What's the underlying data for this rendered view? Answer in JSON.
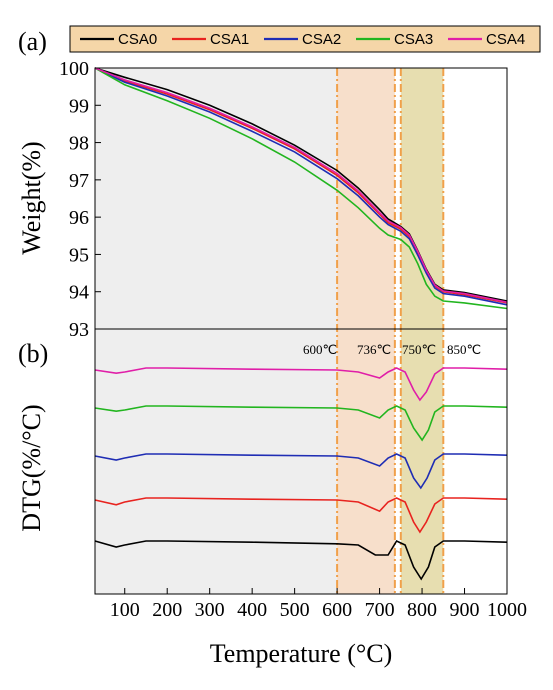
{
  "chart_data": [
    {
      "type": "line",
      "panel_label": "(a)",
      "ylabel": "Weight(%)",
      "ylim": [
        93,
        100
      ],
      "yticks": [
        "93",
        "94",
        "95",
        "96",
        "97",
        "98",
        "99",
        "100"
      ],
      "xlim": [
        30,
        1000
      ],
      "legend": {
        "placement": "top"
      },
      "series": [
        {
          "name": "CSA0",
          "color": "#000000",
          "points": [
            [
              30,
              100
            ],
            [
              100,
              99.75
            ],
            [
              200,
              99.42
            ],
            [
              300,
              99.0
            ],
            [
              400,
              98.5
            ],
            [
              500,
              97.93
            ],
            [
              600,
              97.25
            ],
            [
              650,
              96.78
            ],
            [
              700,
              96.2
            ],
            [
              720,
              95.95
            ],
            [
              750,
              95.75
            ],
            [
              770,
              95.55
            ],
            [
              790,
              95.1
            ],
            [
              810,
              94.6
            ],
            [
              830,
              94.2
            ],
            [
              850,
              94.05
            ],
            [
              900,
              93.98
            ],
            [
              1000,
              93.75
            ]
          ]
        },
        {
          "name": "CSA1",
          "color": "#e8231f",
          "points": [
            [
              30,
              100
            ],
            [
              100,
              99.65
            ],
            [
              200,
              99.3
            ],
            [
              300,
              98.88
            ],
            [
              400,
              98.38
            ],
            [
              500,
              97.83
            ],
            [
              600,
              97.12
            ],
            [
              650,
              96.65
            ],
            [
              700,
              96.08
            ],
            [
              720,
              95.85
            ],
            [
              750,
              95.68
            ],
            [
              770,
              95.48
            ],
            [
              790,
              95.05
            ],
            [
              810,
              94.55
            ],
            [
              830,
              94.15
            ],
            [
              850,
              94.0
            ],
            [
              900,
              93.92
            ],
            [
              1000,
              93.7
            ]
          ]
        },
        {
          "name": "CSA2",
          "color": "#1f2db4",
          "points": [
            [
              30,
              100
            ],
            [
              100,
              99.62
            ],
            [
              200,
              99.25
            ],
            [
              300,
              98.82
            ],
            [
              400,
              98.3
            ],
            [
              500,
              97.75
            ],
            [
              600,
              97.03
            ],
            [
              650,
              96.57
            ],
            [
              700,
              96.0
            ],
            [
              720,
              95.8
            ],
            [
              750,
              95.62
            ],
            [
              770,
              95.42
            ],
            [
              790,
              94.98
            ],
            [
              810,
              94.5
            ],
            [
              830,
              94.1
            ],
            [
              850,
              93.95
            ],
            [
              900,
              93.88
            ],
            [
              1000,
              93.65
            ]
          ]
        },
        {
          "name": "CSA3",
          "color": "#22b51f",
          "points": [
            [
              30,
              100
            ],
            [
              100,
              99.55
            ],
            [
              200,
              99.12
            ],
            [
              300,
              98.65
            ],
            [
              400,
              98.1
            ],
            [
              500,
              97.48
            ],
            [
              600,
              96.72
            ],
            [
              650,
              96.25
            ],
            [
              700,
              95.7
            ],
            [
              720,
              95.52
            ],
            [
              750,
              95.4
            ],
            [
              770,
              95.2
            ],
            [
              790,
              94.75
            ],
            [
              810,
              94.2
            ],
            [
              830,
              93.88
            ],
            [
              850,
              93.75
            ],
            [
              900,
              93.7
            ],
            [
              1000,
              93.55
            ]
          ]
        },
        {
          "name": "CSA4",
          "color": "#e01ea8",
          "points": [
            [
              30,
              100
            ],
            [
              100,
              99.68
            ],
            [
              200,
              99.34
            ],
            [
              300,
              98.92
            ],
            [
              400,
              98.42
            ],
            [
              500,
              97.87
            ],
            [
              600,
              97.17
            ],
            [
              650,
              96.7
            ],
            [
              700,
              96.12
            ],
            [
              720,
              95.9
            ],
            [
              750,
              95.72
            ],
            [
              770,
              95.52
            ],
            [
              790,
              95.08
            ],
            [
              810,
              94.58
            ],
            [
              830,
              94.18
            ],
            [
              850,
              94.02
            ],
            [
              900,
              93.95
            ],
            [
              1000,
              93.72
            ]
          ]
        }
      ]
    },
    {
      "type": "line",
      "panel_label": "(b)",
      "ylabel": "DTG(%/°C)",
      "xlabel": "Temperature (°C)",
      "xlim": [
        30,
        1000
      ],
      "xticks": [
        "100",
        "200",
        "300",
        "400",
        "500",
        "600",
        "700",
        "800",
        "900",
        "1000"
      ],
      "series": [
        {
          "name": "CSA4",
          "color": "#e01ea8",
          "offset": 4,
          "points": [
            [
              30,
              0
            ],
            [
              80,
              -0.08
            ],
            [
              100,
              -0.05
            ],
            [
              150,
              0.05
            ],
            [
              200,
              0.05
            ],
            [
              400,
              0.02
            ],
            [
              600,
              0
            ],
            [
              650,
              -0.05
            ],
            [
              700,
              -0.2
            ],
            [
              720,
              -0.05
            ],
            [
              740,
              0.05
            ],
            [
              760,
              -0.05
            ],
            [
              780,
              -0.5
            ],
            [
              795,
              -0.75
            ],
            [
              810,
              -0.55
            ],
            [
              830,
              -0.1
            ],
            [
              850,
              0.05
            ],
            [
              900,
              0.05
            ],
            [
              1000,
              0.02
            ]
          ]
        },
        {
          "name": "CSA3",
          "color": "#22b51f",
          "offset": 3,
          "points": [
            [
              30,
              0
            ],
            [
              80,
              -0.08
            ],
            [
              100,
              -0.05
            ],
            [
              150,
              0.05
            ],
            [
              200,
              0.05
            ],
            [
              400,
              0.02
            ],
            [
              600,
              0
            ],
            [
              650,
              -0.05
            ],
            [
              700,
              -0.25
            ],
            [
              720,
              -0.05
            ],
            [
              740,
              0.05
            ],
            [
              760,
              -0.05
            ],
            [
              780,
              -0.5
            ],
            [
              800,
              -0.8
            ],
            [
              815,
              -0.55
            ],
            [
              830,
              -0.1
            ],
            [
              850,
              0.05
            ],
            [
              900,
              0.05
            ],
            [
              1000,
              0.02
            ]
          ]
        },
        {
          "name": "CSA2",
          "color": "#1f2db4",
          "offset": 2,
          "points": [
            [
              30,
              0
            ],
            [
              80,
              -0.1
            ],
            [
              100,
              -0.05
            ],
            [
              150,
              0.05
            ],
            [
              200,
              0.05
            ],
            [
              400,
              0.02
            ],
            [
              600,
              0
            ],
            [
              650,
              -0.05
            ],
            [
              700,
              -0.25
            ],
            [
              720,
              -0.05
            ],
            [
              740,
              0.05
            ],
            [
              760,
              -0.05
            ],
            [
              780,
              -0.55
            ],
            [
              797,
              -0.8
            ],
            [
              812,
              -0.55
            ],
            [
              830,
              -0.1
            ],
            [
              850,
              0.05
            ],
            [
              900,
              0.05
            ],
            [
              1000,
              0.02
            ]
          ]
        },
        {
          "name": "CSA1",
          "color": "#e8231f",
          "offset": 1,
          "points": [
            [
              30,
              0
            ],
            [
              80,
              -0.12
            ],
            [
              100,
              -0.05
            ],
            [
              150,
              0.05
            ],
            [
              200,
              0.05
            ],
            [
              400,
              0.02
            ],
            [
              600,
              0
            ],
            [
              650,
              -0.05
            ],
            [
              700,
              -0.28
            ],
            [
              720,
              -0.05
            ],
            [
              740,
              0.05
            ],
            [
              760,
              -0.05
            ],
            [
              780,
              -0.55
            ],
            [
              795,
              -0.8
            ],
            [
              810,
              -0.55
            ],
            [
              830,
              -0.1
            ],
            [
              850,
              0.05
            ],
            [
              900,
              0.05
            ],
            [
              1000,
              0.02
            ]
          ]
        },
        {
          "name": "CSA0",
          "color": "#000000",
          "offset": 0,
          "points": [
            [
              30,
              0.05
            ],
            [
              80,
              -0.1
            ],
            [
              100,
              -0.05
            ],
            [
              150,
              0.05
            ],
            [
              200,
              0.05
            ],
            [
              400,
              0.02
            ],
            [
              600,
              -0.02
            ],
            [
              650,
              -0.05
            ],
            [
              690,
              -0.3
            ],
            [
              720,
              -0.3
            ],
            [
              740,
              0.05
            ],
            [
              760,
              -0.05
            ],
            [
              780,
              -0.6
            ],
            [
              798,
              -0.9
            ],
            [
              815,
              -0.6
            ],
            [
              830,
              -0.1
            ],
            [
              850,
              0.05
            ],
            [
              900,
              0.05
            ],
            [
              1000,
              0.02
            ]
          ]
        }
      ]
    }
  ],
  "annotations": {
    "regions": [
      {
        "from": 600,
        "to": 736,
        "color": "#f6d9c2"
      },
      {
        "from": 750,
        "to": 850,
        "color": "#e3d8a2"
      }
    ],
    "lines": [
      {
        "x": 600,
        "label": "600℃"
      },
      {
        "x": 736,
        "label": "736℃"
      },
      {
        "x": 750,
        "label": "750℃"
      },
      {
        "x": 850,
        "label": "850℃"
      }
    ]
  },
  "colors": {
    "legend_bg": "#f5d6a8",
    "guide_line": "#f0a04a",
    "shade_area": "#eeeeee"
  }
}
